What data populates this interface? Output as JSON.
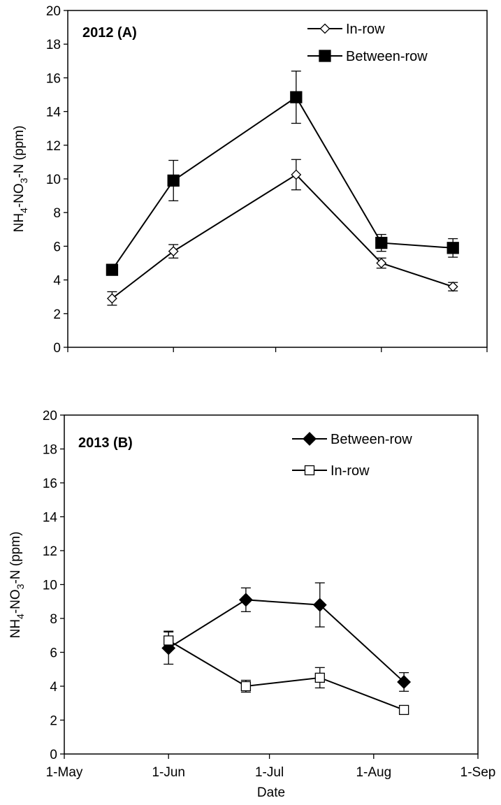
{
  "chart_data": [
    {
      "type": "line",
      "panel_label": "2012 (A)",
      "ylabel": {
        "main": "NH",
        "sub1": "4",
        "mid": "-NO",
        "sub2": "3",
        "tail": "-N (ppm)"
      },
      "xlabel": "",
      "ylim": [
        0,
        20
      ],
      "yticks": [
        "0",
        "2",
        "4",
        "6",
        "8",
        "10",
        "12",
        "14",
        "16",
        "18",
        "20"
      ],
      "xticks": [
        "",
        "",
        "",
        "",
        ""
      ],
      "xlim_date": [
        "2012-05-01",
        "2012-09-01"
      ],
      "grid": false,
      "legend_position": "top-right",
      "legend_order": [
        "In-row",
        "Between-row"
      ],
      "series": [
        {
          "name": "In-row",
          "marker": "open-diamond",
          "x": [
            "2012-05-14",
            "2012-06-01",
            "2012-07-07",
            "2012-08-01",
            "2012-08-22"
          ],
          "values": [
            2.9,
            5.7,
            10.25,
            5.0,
            3.6
          ],
          "errors": [
            0.4,
            0.4,
            0.9,
            0.3,
            0.25
          ]
        },
        {
          "name": "Between-row",
          "marker": "filled-square",
          "x": [
            "2012-05-14",
            "2012-06-01",
            "2012-07-07",
            "2012-08-01",
            "2012-08-22"
          ],
          "values": [
            4.6,
            9.9,
            14.85,
            6.2,
            5.9
          ],
          "errors": [
            0.0,
            1.2,
            1.55,
            0.5,
            0.55
          ]
        }
      ]
    },
    {
      "type": "line",
      "panel_label": "2013 (B)",
      "ylabel": {
        "main": "NH",
        "sub1": "4",
        "mid": "-NO",
        "sub2": "3",
        "tail": "-N (ppm)"
      },
      "xlabel": "Date",
      "ylim": [
        0,
        20
      ],
      "yticks": [
        "0",
        "2",
        "4",
        "6",
        "8",
        "10",
        "12",
        "14",
        "16",
        "18",
        "20"
      ],
      "xticks": [
        "1-May",
        "1-Jun",
        "1-Jul",
        "1-Aug",
        "1-Sep"
      ],
      "xlim_date": [
        "2013-05-01",
        "2013-09-01"
      ],
      "grid": false,
      "legend_position": "top-right",
      "legend_order": [
        "Between-row",
        "In-row"
      ],
      "series": [
        {
          "name": "Between-row",
          "marker": "filled-diamond",
          "x": [
            "2013-06-01",
            "2013-06-24",
            "2013-07-16",
            "2013-08-10"
          ],
          "values": [
            6.25,
            9.1,
            8.8,
            4.25
          ],
          "errors": [
            0.95,
            0.7,
            1.3,
            0.55
          ]
        },
        {
          "name": "In-row",
          "marker": "open-square",
          "x": [
            "2013-06-01",
            "2013-06-24",
            "2013-07-16",
            "2013-08-10"
          ],
          "values": [
            6.7,
            4.0,
            4.5,
            2.6
          ],
          "errors": [
            0.55,
            0.35,
            0.6,
            0.2
          ]
        }
      ]
    }
  ]
}
